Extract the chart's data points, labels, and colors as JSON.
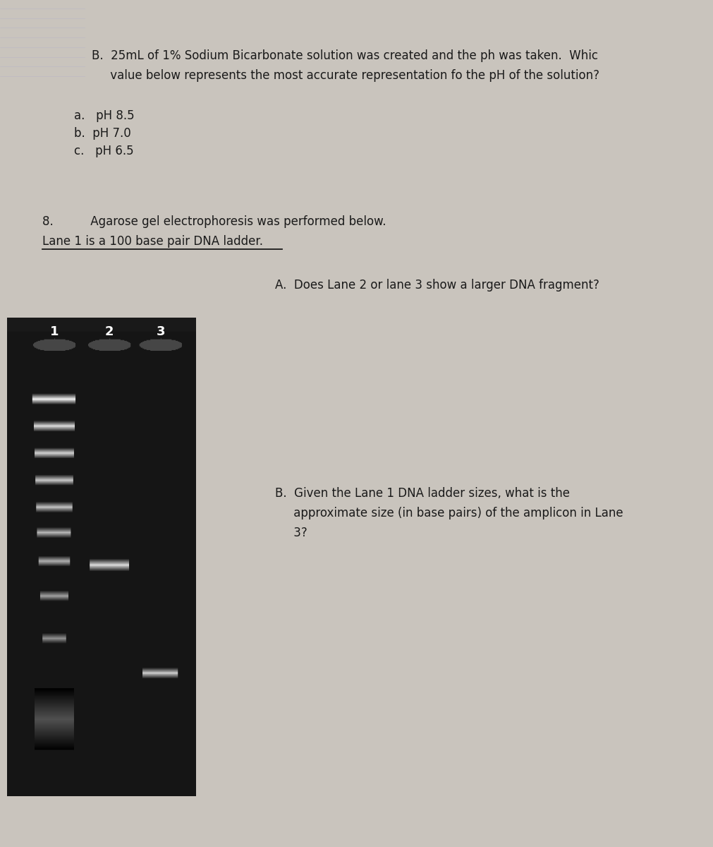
{
  "page_bg": "#c9c4bd",
  "text_color": "#1a1a1a",
  "q7b_line1": "B.  25mL of 1% Sodium Bicarbonate solution was created and the ph was taken.  Whic",
  "q7b_line2": "     value below represents the most accurate representation fo the pH of the solution?",
  "choice_a": "a.   pH 8.5",
  "choice_b": "b.  pH 7.0",
  "choice_c": "c.   pH 6.5",
  "q8_line1": "8.          Agarose gel electrophoresis was performed below.",
  "q8_line2": "Lane 1 is a 100 base pair DNA ladder.",
  "q8a": "A.  Does Lane 2 or lane 3 show a larger DNA fragment?",
  "q8b_1": "B.  Given the Lane 1 DNA ladder sizes, what is the",
  "q8b_2": "     approximate size (in base pairs) of the amplicon in Lane",
  "q8b_3": "     3?",
  "lane_labels": [
    "1",
    "2",
    "3"
  ],
  "gel_bg": "#151515",
  "band_white": "#f0f0f0",
  "band_dim": "#a0a0a0",
  "smear_color": "#505050"
}
